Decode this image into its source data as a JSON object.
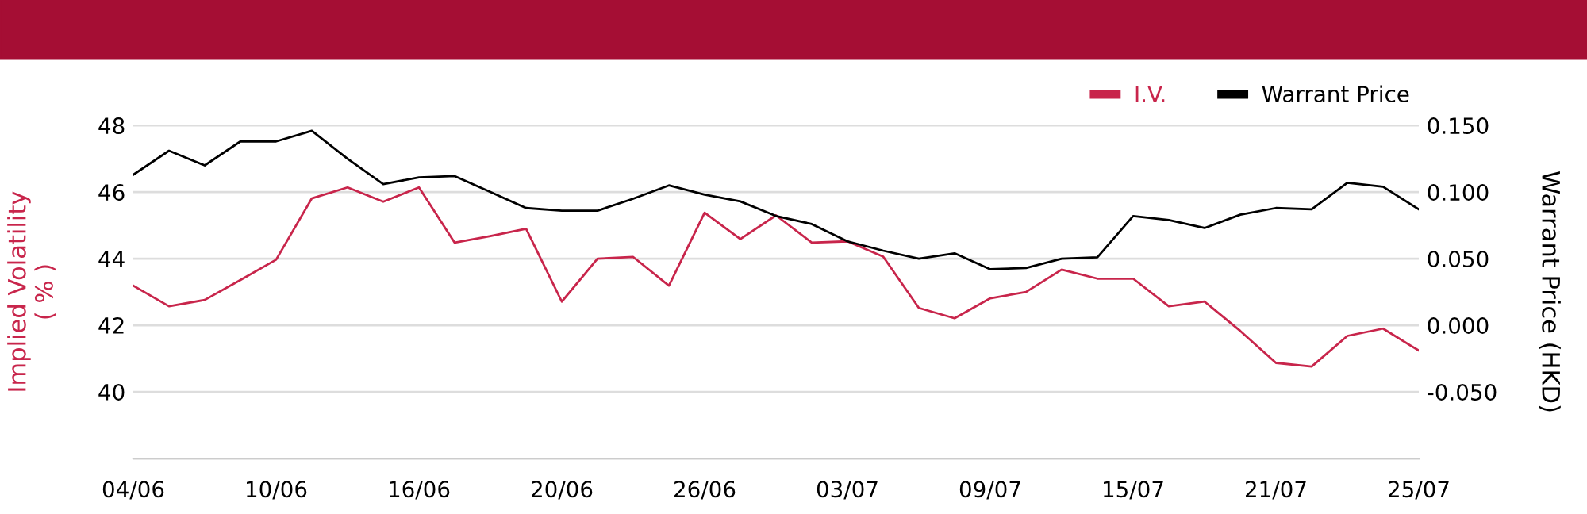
{
  "chart_data": {
    "type": "line",
    "categories": [
      "04/06",
      null,
      null,
      null,
      "10/06",
      null,
      null,
      null,
      "16/06",
      null,
      null,
      null,
      "20/06",
      null,
      null,
      null,
      "26/06",
      null,
      null,
      null,
      "03/07",
      null,
      null,
      null,
      "09/07",
      null,
      null,
      null,
      "15/07",
      null,
      null,
      null,
      "21/07",
      null,
      null,
      null,
      "25/07"
    ],
    "series": [
      {
        "name": "I.V.",
        "color": "#c8254b",
        "values": [
          43.19,
          42.57,
          42.76,
          43.36,
          43.97,
          45.81,
          46.14,
          45.71,
          46.14,
          44.48,
          44.68,
          44.9,
          42.71,
          44.0,
          44.05,
          43.19,
          45.38,
          44.59,
          45.3,
          44.48,
          44.52,
          44.06,
          42.52,
          42.21,
          42.81,
          43.0,
          43.67,
          43.4,
          43.4,
          42.57,
          42.71,
          41.83,
          40.87,
          40.76,
          41.68,
          41.9,
          41.24
        ]
      },
      {
        "name": "Warrant Price",
        "color": "#000000",
        "axis": "y2",
        "values": [
          0.113,
          0.131,
          0.12,
          0.138,
          0.138,
          0.146,
          0.125,
          0.106,
          0.111,
          0.112,
          0.1,
          0.088,
          0.086,
          0.086,
          0.095,
          0.105,
          0.098,
          0.093,
          0.082,
          0.076,
          0.063,
          0.056,
          0.05,
          0.054,
          0.042,
          0.043,
          0.05,
          0.051,
          0.082,
          0.079,
          0.073,
          0.083,
          0.088,
          0.087,
          0.107,
          0.104,
          0.087
        ]
      }
    ],
    "ylabel": "Implied Volatility\n( % )",
    "y2label": "Warrant Price (HKD)",
    "ylim": [
      38,
      48
    ],
    "yticks": [
      40,
      42,
      44,
      46,
      48
    ],
    "y2lim": [
      -0.1,
      0.15
    ],
    "y2ticks": [
      {
        "value": -0.05,
        "label": "-0.050"
      },
      {
        "value": 0,
        "label": "0.000"
      },
      {
        "value": 0.05,
        "label": "0.050"
      },
      {
        "value": 0.1,
        "label": "0.100"
      },
      {
        "value": 0.15,
        "label": "0.150"
      }
    ],
    "grid": "y",
    "legend": "top right",
    "marker": "none",
    "line_style": "solid"
  }
}
